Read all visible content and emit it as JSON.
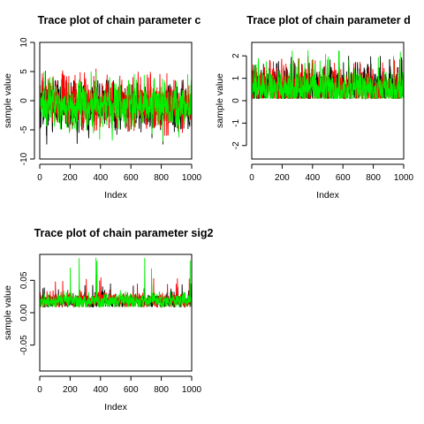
{
  "chart_data": [
    {
      "type": "line",
      "title": "Trace plot of chain parameter c",
      "xlabel": "Index",
      "ylabel": "sample value",
      "xlim": [
        0,
        1000
      ],
      "ylim": [
        -10,
        10
      ],
      "x_ticks": [
        0,
        200,
        400,
        600,
        800,
        1000
      ],
      "y_ticks": [
        -10,
        -5,
        0,
        5,
        10
      ],
      "grid": false,
      "legend": "none",
      "n_samples": 1000,
      "series": [
        {
          "color": "#000000",
          "center": -1.0,
          "spread": 1.7,
          "min": -7.5,
          "max": 3.5,
          "seed": 11
        },
        {
          "color": "#ff0000",
          "center": -0.9,
          "spread": 1.7,
          "min": -6.0,
          "max": 5.5,
          "seed": 23
        },
        {
          "color": "#00ee00",
          "center": -0.8,
          "spread": 1.6,
          "min": -7.0,
          "max": 5.0,
          "seed": 37
        }
      ]
    },
    {
      "type": "line",
      "title": "Trace plot of chain parameter d",
      "xlabel": "Index",
      "ylabel": "sample value",
      "xlim": [
        0,
        1000
      ],
      "ylim": [
        -2.6,
        2.6
      ],
      "x_ticks": [
        0,
        200,
        400,
        600,
        800,
        1000
      ],
      "y_ticks": [
        -2,
        -1,
        0,
        1,
        2
      ],
      "grid": false,
      "legend": "none",
      "n_samples": 1000,
      "series": [
        {
          "color": "#000000",
          "center": 0.55,
          "spread": 0.38,
          "min": 0.1,
          "max": 2.0,
          "seed": 51
        },
        {
          "color": "#ff0000",
          "center": 0.55,
          "spread": 0.38,
          "min": 0.1,
          "max": 1.9,
          "seed": 67
        },
        {
          "color": "#00ee00",
          "center": 0.5,
          "spread": 0.36,
          "min": 0.1,
          "max": 2.25,
          "seed": 79
        }
      ]
    },
    {
      "type": "line",
      "title": "Trace plot of chain parameter sig2",
      "xlabel": "Index",
      "ylabel": "sample value",
      "xlim": [
        0,
        1000
      ],
      "ylim": [
        -0.09,
        0.09
      ],
      "x_ticks": [
        0,
        200,
        400,
        600,
        800,
        1000
      ],
      "y_ticks": [
        -0.05,
        0.0,
        0.05
      ],
      "y_tick_labels": [
        "-0.05",
        "0.00",
        "0.05"
      ],
      "grid": false,
      "legend": "none",
      "n_samples": 1000,
      "series": [
        {
          "color": "#000000",
          "center": 0.018,
          "spread": 0.005,
          "min": 0.009,
          "max": 0.045,
          "seed": 91
        },
        {
          "color": "#ff0000",
          "center": 0.019,
          "spread": 0.005,
          "min": 0.009,
          "max": 0.055,
          "seed": 103
        },
        {
          "color": "#00ee00",
          "center": 0.018,
          "spread": 0.005,
          "min": 0.009,
          "max": 0.085,
          "seed": 117
        }
      ]
    }
  ]
}
